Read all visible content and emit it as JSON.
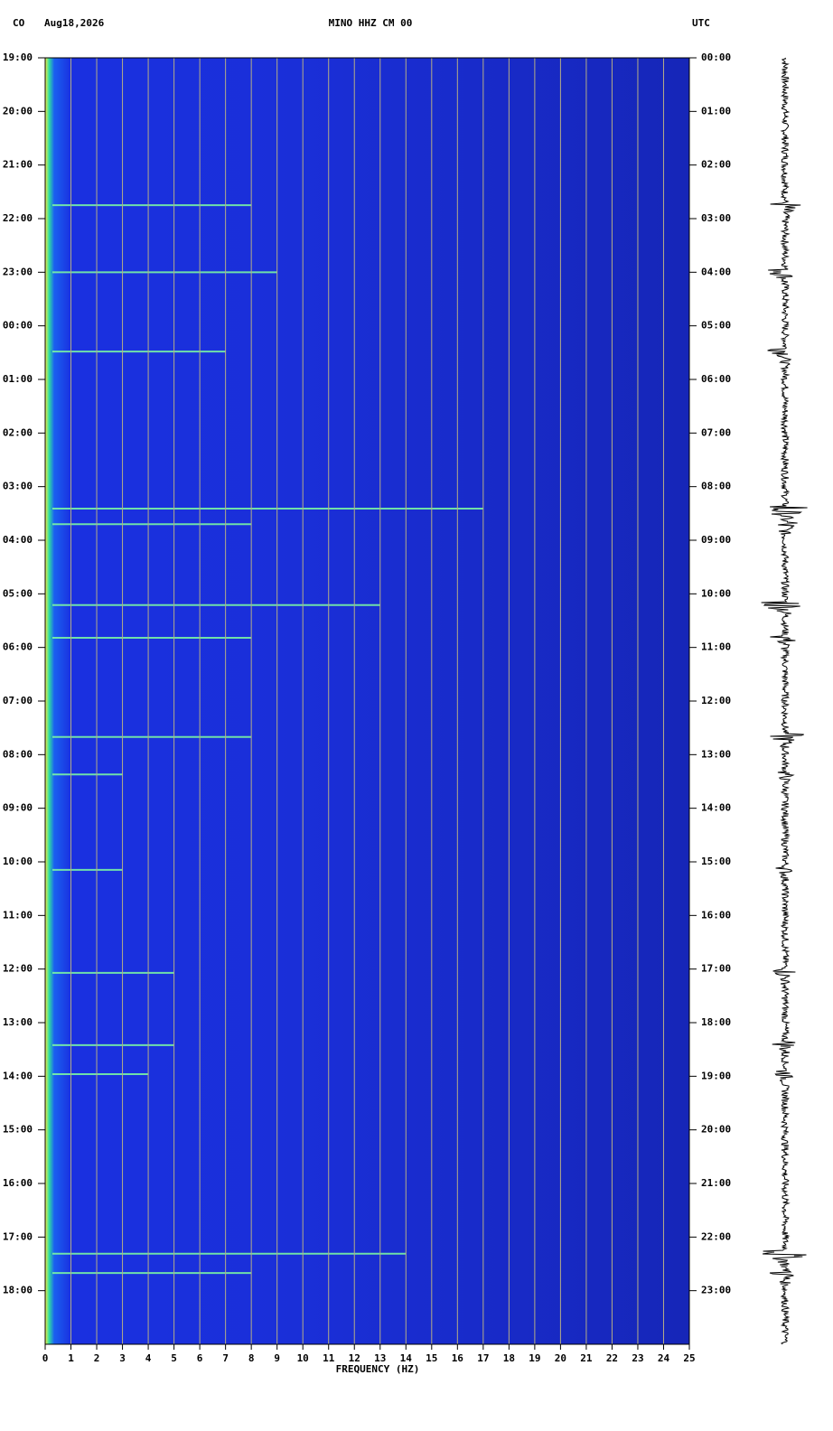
{
  "chart_data": {
    "type": "spectrogram",
    "station": "CO",
    "date": "Aug18,2026",
    "title": "MINO HHZ CM 00",
    "timezone": "UTC",
    "xlabel": "FREQUENCY (HZ)",
    "xlim": [
      0,
      25
    ],
    "xticks": [
      0,
      1,
      2,
      3,
      4,
      5,
      6,
      7,
      8,
      9,
      10,
      11,
      12,
      13,
      14,
      15,
      16,
      17,
      18,
      19,
      20,
      21,
      22,
      23,
      24,
      25
    ],
    "ylim": [
      0,
      24
    ],
    "yticks": [
      {
        "value": 0,
        "label": "19:00"
      },
      {
        "value": 1,
        "label": "20:00"
      },
      {
        "value": 2,
        "label": "21:00"
      },
      {
        "value": 3,
        "label": "22:00"
      },
      {
        "value": 4,
        "label": "23:00"
      },
      {
        "value": 5,
        "label": "00:00"
      },
      {
        "value": 6,
        "label": "01:00"
      },
      {
        "value": 7,
        "label": "02:00"
      },
      {
        "value": 8,
        "label": "03:00"
      },
      {
        "value": 9,
        "label": "04:00"
      },
      {
        "value": 10,
        "label": "05:00"
      },
      {
        "value": 11,
        "label": "06:00"
      },
      {
        "value": 12,
        "label": "07:00"
      },
      {
        "value": 13,
        "label": "08:00"
      },
      {
        "value": 14,
        "label": "09:00"
      },
      {
        "value": 15,
        "label": "10:00"
      },
      {
        "value": 16,
        "label": "11:00"
      },
      {
        "value": 17,
        "label": "12:00"
      },
      {
        "value": 18,
        "label": "13:00"
      },
      {
        "value": 19,
        "label": "14:00"
      },
      {
        "value": 20,
        "label": "15:00"
      },
      {
        "value": 21,
        "label": "16:00"
      },
      {
        "value": 22,
        "label": "17:00"
      },
      {
        "value": 23,
        "label": "18:00"
      }
    ],
    "y2ticks": [
      {
        "value": 0,
        "label": "00:00"
      },
      {
        "value": 1,
        "label": "01:00"
      },
      {
        "value": 2,
        "label": "02:00"
      },
      {
        "value": 3,
        "label": "03:00"
      },
      {
        "value": 4,
        "label": "04:00"
      },
      {
        "value": 5,
        "label": "05:00"
      },
      {
        "value": 6,
        "label": "06:00"
      },
      {
        "value": 7,
        "label": "07:00"
      },
      {
        "value": 8,
        "label": "08:00"
      },
      {
        "value": 9,
        "label": "09:00"
      },
      {
        "value": 10,
        "label": "10:00"
      },
      {
        "value": 11,
        "label": "11:00"
      },
      {
        "value": 12,
        "label": "12:00"
      },
      {
        "value": 13,
        "label": "13:00"
      },
      {
        "value": 14,
        "label": "14:00"
      },
      {
        "value": 15,
        "label": "15:00"
      },
      {
        "value": 16,
        "label": "16:00"
      },
      {
        "value": 17,
        "label": "17:00"
      },
      {
        "value": 18,
        "label": "18:00"
      },
      {
        "value": 19,
        "label": "19:00"
      },
      {
        "value": 20,
        "label": "20:00"
      },
      {
        "value": 21,
        "label": "21:00"
      },
      {
        "value": 22,
        "label": "22:00"
      },
      {
        "value": 23,
        "label": "23:00"
      }
    ],
    "grid": true,
    "color": "#1a2fd8",
    "event_color": "#7fffa0",
    "events": {
      "hours": [
        2.75,
        4.0,
        5.48,
        8.41,
        8.7,
        10.21,
        10.82,
        12.67,
        13.37,
        15.15,
        17.07,
        18.42,
        18.96,
        22.31,
        22.67
      ],
      "fmax": [
        8,
        9,
        7,
        17,
        8,
        13,
        8,
        8,
        3,
        3,
        5,
        5,
        4,
        14,
        8
      ]
    }
  }
}
